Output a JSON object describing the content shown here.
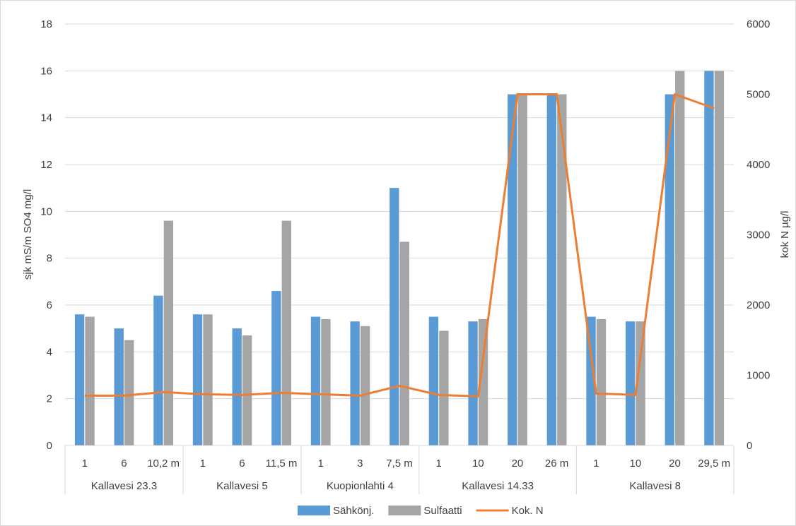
{
  "chart_data": {
    "type": "bar",
    "groups": [
      {
        "label": "Kallavesi 23.3",
        "depths": [
          "1",
          "6",
          "10,2 m"
        ]
      },
      {
        "label": "Kallavesi 5",
        "depths": [
          "1",
          "6",
          "11,5 m"
        ]
      },
      {
        "label": "Kuopionlahti 4",
        "depths": [
          "1",
          "3",
          "7,5 m"
        ]
      },
      {
        "label": "Kallavesi 14.33",
        "depths": [
          "1",
          "10",
          "20",
          "26 m"
        ]
      },
      {
        "label": "Kallavesi 8",
        "depths": [
          "1",
          "10",
          "20",
          "29,5 m"
        ]
      }
    ],
    "series": [
      {
        "name": "Sähkönj.",
        "type": "bar",
        "axis": "left",
        "color": "#5b9bd5",
        "values": [
          5.6,
          5.0,
          6.4,
          5.6,
          5.0,
          6.6,
          5.5,
          5.3,
          11.0,
          5.5,
          5.3,
          15.0,
          15.0,
          5.5,
          5.3,
          15.0,
          16.0
        ]
      },
      {
        "name": "Sulfaatti",
        "type": "bar",
        "axis": "left",
        "color": "#a5a5a5",
        "values": [
          5.5,
          4.5,
          9.6,
          5.6,
          4.7,
          9.6,
          5.4,
          5.1,
          8.7,
          4.9,
          5.4,
          15.0,
          15.0,
          5.4,
          5.3,
          16.0,
          16.0
        ]
      },
      {
        "name": "Kok. N",
        "type": "line",
        "axis": "right",
        "color": "#ed7d31",
        "values": [
          710,
          710,
          760,
          730,
          720,
          750,
          730,
          710,
          850,
          720,
          700,
          5000,
          5000,
          740,
          720,
          5000,
          4800
        ]
      }
    ],
    "ylabel_left": "sjk mS/m  SO4 mg/l",
    "ylabel_right": "kok N µg/l",
    "ylim_left": [
      0,
      18
    ],
    "ylim_right": [
      0,
      6000
    ],
    "yticks_left": [
      "0",
      "2",
      "4",
      "6",
      "8",
      "10",
      "12",
      "14",
      "16",
      "18"
    ],
    "yticks_right": [
      "0",
      "1000",
      "2000",
      "3000",
      "4000",
      "5000",
      "6000"
    ],
    "grid": true,
    "legend_position": "bottom"
  }
}
